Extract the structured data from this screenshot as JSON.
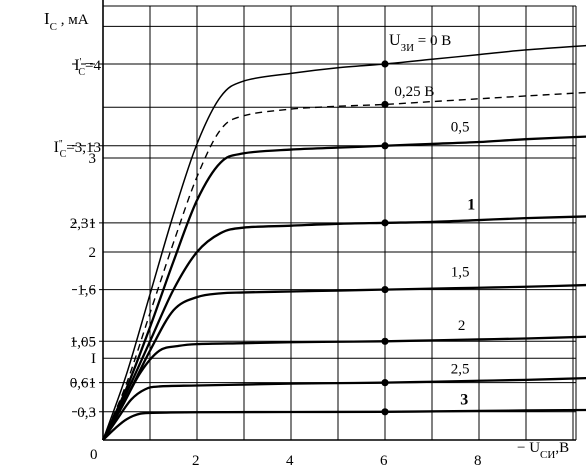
{
  "chart_data": {
    "type": "line",
    "ylabel": {
      "main": "I",
      "sub": "С",
      "rest": " , мА"
    },
    "xlabel": {
      "main": "− U",
      "sub": "СИ",
      "rest": ",В"
    },
    "origin_label": "0",
    "x_ticks": [
      {
        "value": 2,
        "label": "2"
      },
      {
        "value": 4,
        "label": "4"
      },
      {
        "value": 6,
        "label": "6"
      },
      {
        "value": 8,
        "label": "8"
      }
    ],
    "y_ticks": [
      {
        "value": 0.3,
        "label": "0,3"
      },
      {
        "value": 0.61,
        "label": "0,61"
      },
      {
        "value": 0.87,
        "label": "I"
      },
      {
        "value": 1.05,
        "label": "1,05"
      },
      {
        "value": 1.6,
        "label": "1,6"
      },
      {
        "value": 2.0,
        "label": "2"
      },
      {
        "value": 2.31,
        "label": "2,31"
      },
      {
        "value": 3.0,
        "label": "3"
      }
    ],
    "y_special": [
      {
        "value": 4.0,
        "main": "I",
        "sup": "'",
        "sub": "С",
        "rest": "=4"
      },
      {
        "value": 3.13,
        "main": "I",
        "sup": "''",
        "sub": "С",
        "rest": "=3,13"
      }
    ],
    "xlim": [
      0,
      10.5
    ],
    "ylim": [
      0,
      4.6
    ],
    "x_grid": [
      0,
      1,
      2,
      3,
      4,
      5,
      6,
      7,
      8,
      9,
      10
    ],
    "y_grid": [
      0.3,
      0.61,
      0.87,
      1.05,
      1.6,
      2.0,
      2.31,
      3.0,
      3.13,
      3.54,
      4.0,
      4.4
    ],
    "dashed_refs": [
      4.0,
      3.13,
      2.31,
      1.6,
      1.05,
      0.61,
      0.3
    ],
    "marker_x": 6,
    "series": [
      {
        "name": "0 В",
        "style": "thin",
        "points": [
          [
            0,
            0
          ],
          [
            0.5,
            0.7
          ],
          [
            1,
            1.55
          ],
          [
            1.5,
            2.4
          ],
          [
            2,
            3.15
          ],
          [
            2.5,
            3.65
          ],
          [
            3,
            3.82
          ],
          [
            4,
            3.9
          ],
          [
            5,
            3.96
          ],
          [
            6,
            4.0
          ],
          [
            7,
            4.05
          ],
          [
            8,
            4.1
          ],
          [
            9,
            4.15
          ],
          [
            10.4,
            4.2
          ]
        ]
      },
      {
        "name": "0,25 В",
        "style": "dashed",
        "points": [
          [
            0,
            0
          ],
          [
            0.5,
            0.6
          ],
          [
            1,
            1.35
          ],
          [
            1.5,
            2.1
          ],
          [
            2,
            2.8
          ],
          [
            2.5,
            3.3
          ],
          [
            3,
            3.45
          ],
          [
            4,
            3.52
          ],
          [
            5,
            3.55
          ],
          [
            6,
            3.57
          ],
          [
            7,
            3.6
          ],
          [
            8,
            3.63
          ],
          [
            9,
            3.66
          ],
          [
            10.4,
            3.7
          ]
        ]
      },
      {
        "name": "0,5",
        "style": "bold",
        "points": [
          [
            0,
            0
          ],
          [
            0.5,
            0.55
          ],
          [
            1,
            1.2
          ],
          [
            1.5,
            1.9
          ],
          [
            2,
            2.55
          ],
          [
            2.5,
            2.95
          ],
          [
            3,
            3.05
          ],
          [
            4,
            3.09
          ],
          [
            5,
            3.11
          ],
          [
            6,
            3.13
          ],
          [
            7,
            3.15
          ],
          [
            8,
            3.17
          ],
          [
            9,
            3.2
          ],
          [
            10.4,
            3.23
          ]
        ]
      },
      {
        "name": "1",
        "style": "bold",
        "label_bold": true,
        "points": [
          [
            0,
            0
          ],
          [
            0.5,
            0.5
          ],
          [
            1,
            1.05
          ],
          [
            1.5,
            1.6
          ],
          [
            2,
            2.0
          ],
          [
            2.5,
            2.2
          ],
          [
            3,
            2.26
          ],
          [
            4,
            2.28
          ],
          [
            5,
            2.3
          ],
          [
            6,
            2.31
          ],
          [
            7,
            2.32
          ],
          [
            8,
            2.34
          ],
          [
            9,
            2.36
          ],
          [
            10.4,
            2.38
          ]
        ]
      },
      {
        "name": "1,5",
        "style": "bold",
        "points": [
          [
            0,
            0
          ],
          [
            0.5,
            0.45
          ],
          [
            1,
            0.95
          ],
          [
            1.5,
            1.38
          ],
          [
            2,
            1.52
          ],
          [
            2.5,
            1.56
          ],
          [
            3,
            1.57
          ],
          [
            4,
            1.58
          ],
          [
            5,
            1.59
          ],
          [
            6,
            1.6
          ],
          [
            7,
            1.61
          ],
          [
            8,
            1.62
          ],
          [
            9,
            1.63
          ],
          [
            10.4,
            1.65
          ]
        ]
      },
      {
        "name": "2",
        "style": "bold",
        "points": [
          [
            0,
            0
          ],
          [
            0.4,
            0.35
          ],
          [
            0.8,
            0.72
          ],
          [
            1.2,
            0.95
          ],
          [
            1.6,
            1.0
          ],
          [
            2,
            1.02
          ],
          [
            3,
            1.03
          ],
          [
            4,
            1.04
          ],
          [
            5,
            1.045
          ],
          [
            6,
            1.05
          ],
          [
            7,
            1.06
          ],
          [
            8,
            1.07
          ],
          [
            9,
            1.08
          ],
          [
            10.4,
            1.1
          ]
        ]
      },
      {
        "name": "2,5",
        "style": "bold",
        "points": [
          [
            0,
            0
          ],
          [
            0.3,
            0.22
          ],
          [
            0.6,
            0.43
          ],
          [
            0.9,
            0.54
          ],
          [
            1.2,
            0.57
          ],
          [
            2,
            0.58
          ],
          [
            3,
            0.59
          ],
          [
            4,
            0.6
          ],
          [
            5,
            0.605
          ],
          [
            6,
            0.61
          ],
          [
            7,
            0.62
          ],
          [
            8,
            0.63
          ],
          [
            9,
            0.64
          ],
          [
            10.4,
            0.66
          ]
        ]
      },
      {
        "name": "3",
        "style": "bold",
        "label_bold": true,
        "points": [
          [
            0,
            0
          ],
          [
            0.25,
            0.12
          ],
          [
            0.5,
            0.22
          ],
          [
            0.8,
            0.28
          ],
          [
            1.2,
            0.29
          ],
          [
            2,
            0.295
          ],
          [
            4,
            0.298
          ],
          [
            6,
            0.3
          ],
          [
            8,
            0.31
          ],
          [
            10.4,
            0.32
          ]
        ]
      }
    ],
    "legend_prefix": {
      "main": "U",
      "sub": "ЗИ",
      "rest": " = 0  В"
    },
    "curve_labels": [
      {
        "series": "0,25 В",
        "text": "0,25 В",
        "x": 6.2,
        "y": 3.66
      },
      {
        "series": "0,5",
        "text": "0,5",
        "x": 7.4,
        "y": 3.28
      },
      {
        "series": "1",
        "text": "1",
        "x": 7.75,
        "y": 2.45
      },
      {
        "series": "1,5",
        "text": "1,5",
        "x": 7.4,
        "y": 1.74
      },
      {
        "series": "2",
        "text": "2",
        "x": 7.55,
        "y": 1.17
      },
      {
        "series": "2,5",
        "text": "2,5",
        "x": 7.4,
        "y": 0.71
      },
      {
        "series": "3",
        "text": "3",
        "x": 7.6,
        "y": 0.38
      }
    ]
  }
}
